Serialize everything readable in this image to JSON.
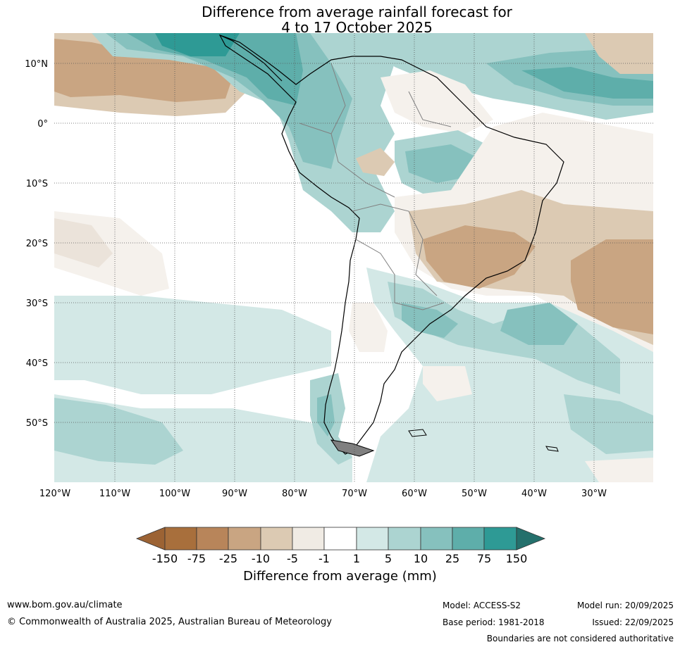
{
  "title": {
    "line1": "Difference from average rainfall forecast for",
    "line2": "4 to 17 October 2025"
  },
  "map": {
    "lat_labels": [
      "10°N",
      "0°",
      "10°S",
      "20°S",
      "30°S",
      "40°S",
      "50°S"
    ],
    "lon_labels": [
      "120°W",
      "110°W",
      "100°W",
      "90°W",
      "80°W",
      "70°W",
      "60°W",
      "50°W",
      "40°W",
      "30°W"
    ],
    "palette": {
      "m150": "#a86f3c",
      "m75": "#b8855a",
      "m25": "#c9a582",
      "m10": "#dccab3",
      "m5": "#ebe3da",
      "m1": "#f5f1ec",
      "zero": "#ffffff",
      "p1": "#d3e8e6",
      "p5": "#acd4d1",
      "p10": "#86c1be",
      "p25": "#5eaeaa",
      "p75": "#2e9a95",
      "p150": "#24706c"
    }
  },
  "colorbar": {
    "ticks": [
      "-150",
      "-75",
      "-25",
      "-10",
      "-5",
      "-1",
      "1",
      "5",
      "10",
      "25",
      "75",
      "150"
    ],
    "title": "Difference from average (mm)"
  },
  "footer": {
    "website": "www.bom.gov.au/climate",
    "copyright": "© Commonwealth of Australia 2025, Australian Bureau of Meteorology",
    "model": "Model: ACCESS-S2",
    "base_period": "Base period: 1981-2018",
    "model_run": "Model run: 20/09/2025",
    "issued": "Issued: 22/09/2025",
    "boundaries": "Boundaries are not considered authoritative"
  }
}
